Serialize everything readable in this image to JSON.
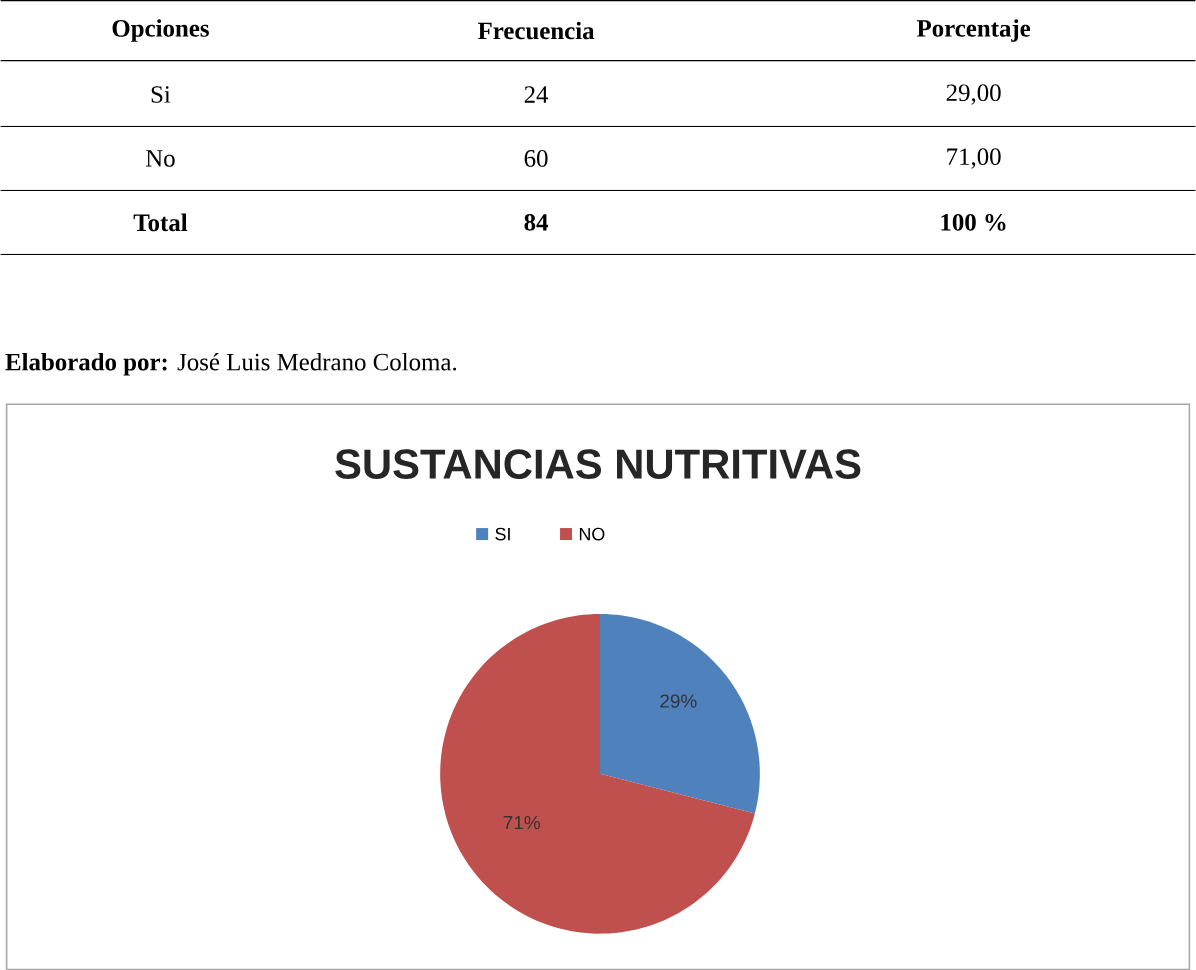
{
  "chart_data": {
    "type": "pie",
    "title": "SUSTANCIAS NUTRITIVAS",
    "categories": [
      "SI",
      "NO"
    ],
    "values": [
      29,
      71
    ],
    "colors": [
      "#4f81bd",
      "#c0504d"
    ],
    "value_labels": [
      "29%",
      "71%"
    ],
    "legend": "top",
    "annotations": [
      "Opciones",
      "Frecuencia",
      "Porcentaje",
      "Si",
      "24",
      "29,00",
      "No",
      "60",
      "71,00",
      "Total",
      "84",
      "100 %",
      "**Elaborado por:** José Luis Medrano Coloma."
    ]
  }
}
